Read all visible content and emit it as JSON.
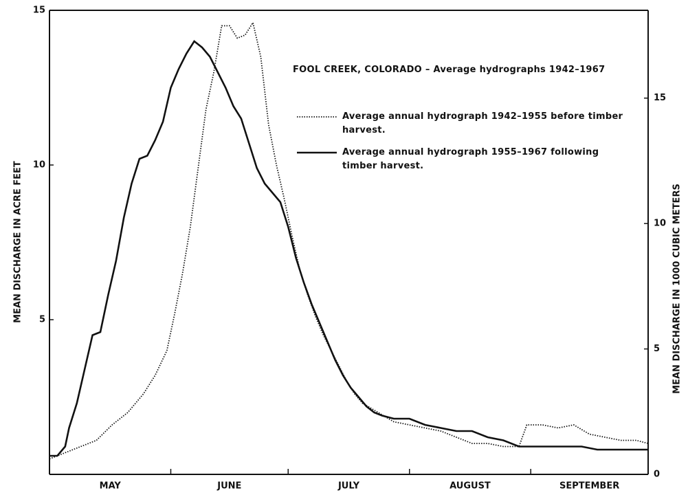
{
  "chart_data": {
    "type": "line",
    "title": "FOOL CREEK, COLORADO – Average hydrographs 1942–1967",
    "ylabel": "MEAN DISCHARGE IN ACRE FEET",
    "y2label": "MEAN DISCHARGE IN 1000 CUBIC METERS",
    "categories": [
      "MAY",
      "JUNE",
      "JULY",
      "AUGUST",
      "SEPTEMBER"
    ],
    "xlim": [
      0,
      153
    ],
    "xticks": [
      0,
      31,
      61,
      92,
      123,
      153
    ],
    "ylim": [
      0,
      15
    ],
    "yticks": [
      5,
      10,
      15
    ],
    "y2lim": [
      0,
      18.5
    ],
    "y2ticks": [
      0,
      5,
      10,
      15
    ],
    "grid": false,
    "series": [
      {
        "name": "Average annual hydrograph 1942–1955 before timber harvest.",
        "color": "#111111",
        "line_style": "dotted",
        "x": [
          0,
          4,
          8,
          12,
          16,
          20,
          24,
          27,
          30,
          32,
          34,
          36,
          38,
          40,
          42,
          44,
          46,
          48,
          50,
          52,
          54,
          56,
          58,
          60,
          62,
          64,
          66,
          68,
          70,
          72,
          74,
          76,
          78,
          80,
          84,
          88,
          92,
          96,
          100,
          104,
          108,
          112,
          116,
          120,
          122,
          126,
          130,
          134,
          138,
          142,
          146,
          150,
          153
        ],
        "values": [
          0.5,
          0.7,
          0.9,
          1.1,
          1.6,
          2.0,
          2.6,
          3.2,
          4.0,
          5.2,
          6.5,
          8.0,
          9.9,
          11.8,
          13.0,
          14.5,
          14.5,
          14.1,
          14.2,
          14.6,
          13.5,
          11.3,
          10.0,
          8.9,
          7.7,
          6.6,
          5.8,
          5.1,
          4.5,
          4.0,
          3.5,
          3.0,
          2.6,
          2.3,
          2.0,
          1.7,
          1.6,
          1.5,
          1.4,
          1.2,
          1.0,
          1.0,
          0.9,
          0.9,
          1.6,
          1.6,
          1.5,
          1.6,
          1.3,
          1.2,
          1.1,
          1.1,
          1.0
        ]
      },
      {
        "name": "Average annual hydrograph 1955–1967 following timber harvest.",
        "color": "#111111",
        "line_style": "solid",
        "x": [
          0,
          2,
          4,
          5,
          7,
          9,
          11,
          13,
          15,
          17,
          19,
          21,
          23,
          25,
          27,
          29,
          31,
          33,
          35,
          37,
          39,
          41,
          43,
          45,
          47,
          49,
          51,
          53,
          55,
          57,
          59,
          61,
          63,
          65,
          67,
          69,
          71,
          73,
          75,
          77,
          79,
          81,
          83,
          85,
          88,
          92,
          96,
          100,
          104,
          108,
          112,
          116,
          120,
          124,
          130,
          136,
          140,
          144,
          148,
          153
        ],
        "values": [
          0.6,
          0.6,
          0.9,
          1.5,
          2.3,
          3.4,
          4.5,
          4.6,
          5.8,
          6.9,
          8.3,
          9.4,
          10.2,
          10.3,
          10.8,
          11.4,
          12.5,
          13.1,
          13.6,
          14.0,
          13.8,
          13.5,
          13.0,
          12.5,
          11.9,
          11.5,
          10.7,
          9.9,
          9.4,
          9.1,
          8.8,
          8.0,
          7.0,
          6.2,
          5.5,
          4.9,
          4.3,
          3.7,
          3.2,
          2.8,
          2.5,
          2.2,
          2.0,
          1.9,
          1.8,
          1.8,
          1.6,
          1.5,
          1.4,
          1.4,
          1.2,
          1.1,
          0.9,
          0.9,
          0.9,
          0.9,
          0.8,
          0.8,
          0.8,
          0.8
        ]
      }
    ]
  }
}
